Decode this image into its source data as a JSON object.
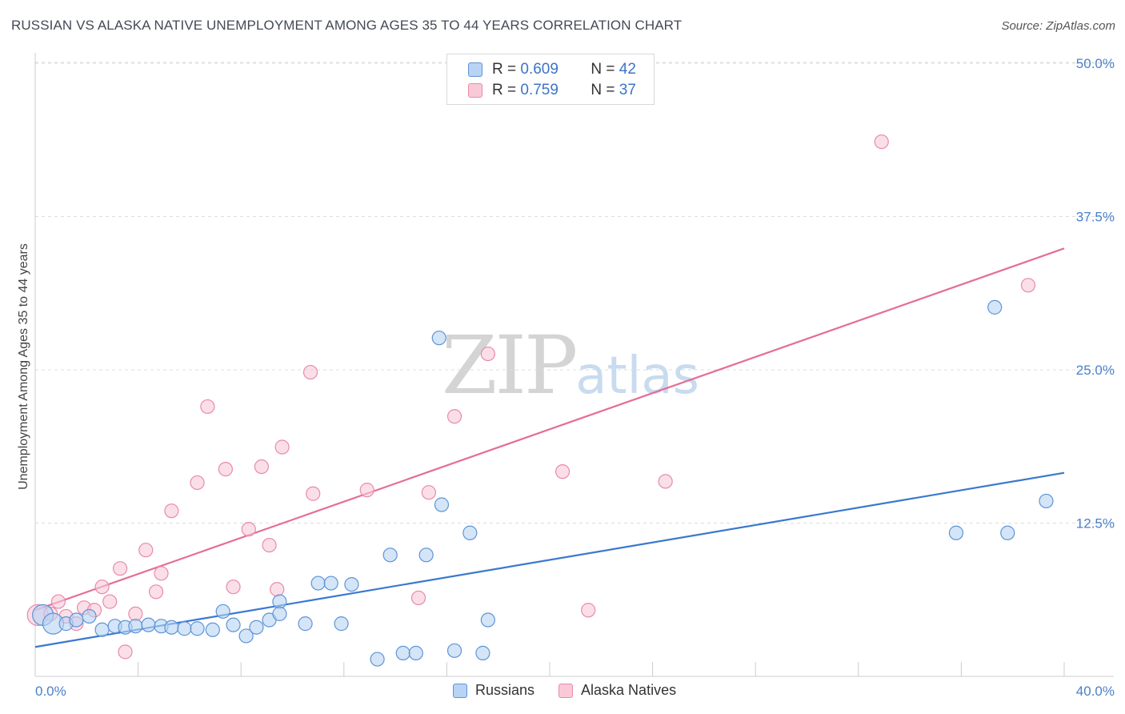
{
  "title": "RUSSIAN VS ALASKA NATIVE UNEMPLOYMENT AMONG AGES 35 TO 44 YEARS CORRELATION CHART",
  "source": "Source: ZipAtlas.com",
  "watermark": {
    "zip": "ZIP",
    "atlas": "atlas"
  },
  "legend": {
    "rows": [
      {
        "r_label": "R =",
        "r_value": "0.609",
        "n_label": "N =",
        "n_value": "42"
      },
      {
        "r_label": "R =",
        "r_value": "0.759",
        "n_label": "N =",
        "n_value": "37"
      }
    ]
  },
  "bottom_legend": {
    "russians": "Russians",
    "alaska": "Alaska Natives"
  },
  "colors": {
    "russians_fill": "#b8d3f3",
    "russians_stroke": "#5e94d6",
    "russians_line": "#3a78cf",
    "alaska_fill": "#f9c9d8",
    "alaska_stroke": "#e98aa8",
    "alaska_line": "#e46e97",
    "grid": "#dddddd",
    "tick_text": "#4a80c9"
  },
  "chart_data": {
    "type": "scatter",
    "title": "RUSSIAN VS ALASKA NATIVE UNEMPLOYMENT AMONG AGES 35 TO 44 YEARS CORRELATION CHART",
    "xlabel": "",
    "ylabel": "Unemployment Among Ages 35 to 44 years",
    "xlim": [
      0,
      40
    ],
    "ylim": [
      0,
      50
    ],
    "x_tick_labels": [
      "0.0%",
      "40.0%"
    ],
    "y_ticks": [
      12.5,
      25.0,
      37.5,
      50.0
    ],
    "y_tick_labels": [
      "12.5%",
      "25.0%",
      "37.5%",
      "50.0%"
    ],
    "series": [
      {
        "name": "Russians",
        "r": 0.609,
        "n": 42,
        "trend": {
          "x": [
            0,
            40
          ],
          "y": [
            2.4,
            16.6
          ]
        },
        "points": [
          {
            "x": 0.3,
            "y": 5.0,
            "big": true
          },
          {
            "x": 0.7,
            "y": 4.3,
            "big": true
          },
          {
            "x": 1.2,
            "y": 4.3
          },
          {
            "x": 1.6,
            "y": 4.6
          },
          {
            "x": 2.1,
            "y": 4.9
          },
          {
            "x": 2.6,
            "y": 3.8
          },
          {
            "x": 3.1,
            "y": 4.1
          },
          {
            "x": 3.5,
            "y": 4.0
          },
          {
            "x": 3.9,
            "y": 4.1
          },
          {
            "x": 4.4,
            "y": 4.2
          },
          {
            "x": 4.9,
            "y": 4.1
          },
          {
            "x": 5.3,
            "y": 4.0
          },
          {
            "x": 5.8,
            "y": 3.9
          },
          {
            "x": 6.3,
            "y": 3.9
          },
          {
            "x": 6.9,
            "y": 3.8
          },
          {
            "x": 7.3,
            "y": 5.3
          },
          {
            "x": 7.7,
            "y": 4.2
          },
          {
            "x": 8.2,
            "y": 3.3
          },
          {
            "x": 8.6,
            "y": 4.0
          },
          {
            "x": 9.1,
            "y": 4.6
          },
          {
            "x": 9.5,
            "y": 6.1
          },
          {
            "x": 9.5,
            "y": 5.1
          },
          {
            "x": 10.5,
            "y": 4.3
          },
          {
            "x": 11.0,
            "y": 7.6
          },
          {
            "x": 11.5,
            "y": 7.6
          },
          {
            "x": 11.9,
            "y": 4.3
          },
          {
            "x": 12.3,
            "y": 7.5
          },
          {
            "x": 13.3,
            "y": 1.4
          },
          {
            "x": 13.8,
            "y": 9.9
          },
          {
            "x": 14.3,
            "y": 1.9
          },
          {
            "x": 14.8,
            "y": 1.9
          },
          {
            "x": 15.2,
            "y": 9.9
          },
          {
            "x": 15.7,
            "y": 27.6
          },
          {
            "x": 15.8,
            "y": 14.0
          },
          {
            "x": 16.3,
            "y": 2.1
          },
          {
            "x": 16.9,
            "y": 11.7
          },
          {
            "x": 17.4,
            "y": 1.9
          },
          {
            "x": 17.6,
            "y": 4.6
          },
          {
            "x": 35.8,
            "y": 11.7
          },
          {
            "x": 37.8,
            "y": 11.7
          },
          {
            "x": 37.3,
            "y": 30.1
          },
          {
            "x": 39.3,
            "y": 14.3
          }
        ]
      },
      {
        "name": "Alaska Natives",
        "r": 0.759,
        "n": 37,
        "trend": {
          "x": [
            0,
            40
          ],
          "y": [
            5.4,
            34.9
          ]
        },
        "points": [
          {
            "x": 0.1,
            "y": 5.0,
            "big": true
          },
          {
            "x": 0.6,
            "y": 5.1
          },
          {
            "x": 0.9,
            "y": 6.1
          },
          {
            "x": 1.2,
            "y": 4.9
          },
          {
            "x": 1.6,
            "y": 4.3
          },
          {
            "x": 1.9,
            "y": 5.6
          },
          {
            "x": 2.3,
            "y": 5.4
          },
          {
            "x": 2.6,
            "y": 7.3
          },
          {
            "x": 2.9,
            "y": 6.1
          },
          {
            "x": 3.3,
            "y": 8.8
          },
          {
            "x": 3.5,
            "y": 2.0
          },
          {
            "x": 3.9,
            "y": 5.1
          },
          {
            "x": 4.3,
            "y": 10.3
          },
          {
            "x": 4.7,
            "y": 6.9
          },
          {
            "x": 4.9,
            "y": 8.4
          },
          {
            "x": 5.3,
            "y": 13.5
          },
          {
            "x": 6.3,
            "y": 15.8
          },
          {
            "x": 6.7,
            "y": 22.0
          },
          {
            "x": 7.4,
            "y": 16.9
          },
          {
            "x": 7.7,
            "y": 7.3
          },
          {
            "x": 8.3,
            "y": 12.0
          },
          {
            "x": 8.8,
            "y": 17.1
          },
          {
            "x": 9.1,
            "y": 10.7
          },
          {
            "x": 9.4,
            "y": 7.1
          },
          {
            "x": 9.6,
            "y": 18.7
          },
          {
            "x": 10.7,
            "y": 24.8
          },
          {
            "x": 10.8,
            "y": 14.9
          },
          {
            "x": 12.9,
            "y": 15.2
          },
          {
            "x": 14.9,
            "y": 6.4
          },
          {
            "x": 15.3,
            "y": 15.0
          },
          {
            "x": 16.3,
            "y": 21.2
          },
          {
            "x": 17.6,
            "y": 26.3
          },
          {
            "x": 20.5,
            "y": 16.7
          },
          {
            "x": 21.5,
            "y": 5.4
          },
          {
            "x": 24.5,
            "y": 15.9
          },
          {
            "x": 32.9,
            "y": 43.6
          },
          {
            "x": 38.6,
            "y": 31.9
          }
        ]
      }
    ]
  }
}
